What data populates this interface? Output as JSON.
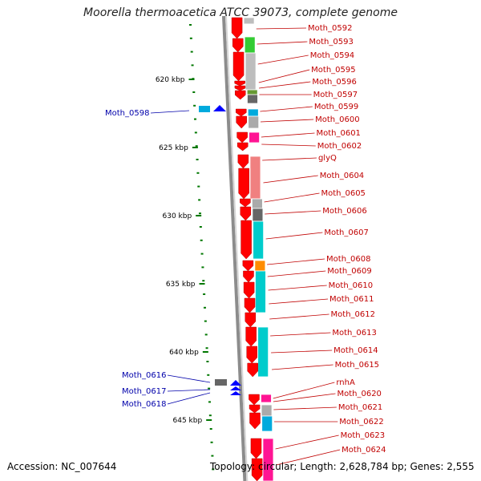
{
  "title": "Moorella thermoacetica ATCC 39073, complete genome",
  "footer": {
    "accession": "Accession: NC_007644",
    "summary": "Topology: circular; Length: 2,628,784 bp; Genes: 2,555"
  },
  "scale_labels": [
    "620 kbp",
    "625 kbp",
    "630 kbp",
    "635 kbp",
    "640 kbp",
    "645 kbp"
  ],
  "reverse_genes": [
    "Moth_0592",
    "Moth_0593",
    "Moth_0594",
    "Moth_0595",
    "Moth_0596",
    "Moth_0597",
    "Moth_0599",
    "Moth_0600",
    "Moth_0601",
    "Moth_0602",
    "glyQ",
    "Moth_0604",
    "Moth_0605",
    "Moth_0606",
    "Moth_0607",
    "Moth_0608",
    "Moth_0609",
    "Moth_0610",
    "Moth_0611",
    "Moth_0612",
    "Moth_0613",
    "Moth_0614",
    "Moth_0615",
    "rnhA",
    "Moth_0620",
    "Moth_0621",
    "Moth_0622",
    "Moth_0623",
    "Moth_0624"
  ],
  "forward_genes": [
    "Moth_0598",
    "Moth_0616",
    "Moth_0617",
    "Moth_0618"
  ],
  "colors": {
    "reverse_label": "#c00000",
    "forward_label": "#0000aa",
    "reverse_gene": "#ff0000",
    "forward_gene": "#0000ff",
    "backbone": "#8c8c8c",
    "tick": "#007700"
  }
}
